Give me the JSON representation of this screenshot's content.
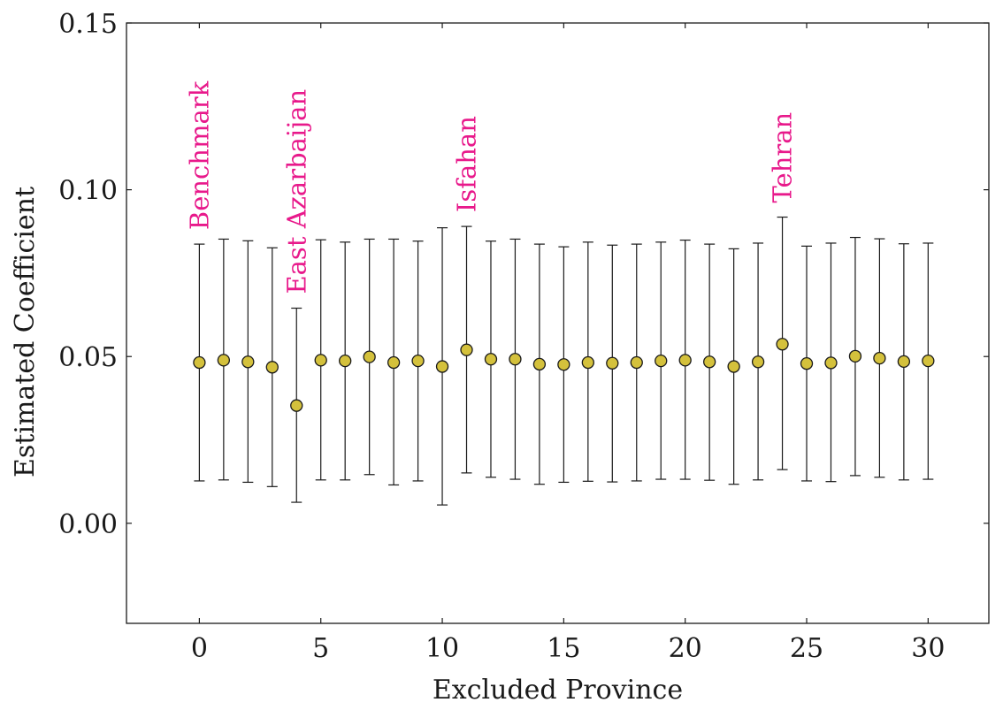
{
  "chart_data": {
    "type": "scatter",
    "title": "",
    "xlabel": "Excluded Province",
    "ylabel": "Estimated Coefficient",
    "xlim": [
      -3,
      32.5
    ],
    "ylim": [
      -0.03,
      0.15
    ],
    "xticks": [
      0,
      5,
      10,
      15,
      20,
      25,
      30
    ],
    "yticks": [
      0.0,
      0.05,
      0.1,
      0.15
    ],
    "ytick_labels": [
      "0.00",
      "0.05",
      "0.10",
      "0.15"
    ],
    "grid": false,
    "colors": {
      "marker_fill": "#d4c13c",
      "marker_stroke": "#1a1a1a",
      "errorbar": "#1a1a1a",
      "annotation": "#e8198b",
      "axis": "#1a1a1a"
    },
    "points": [
      {
        "x": 0,
        "y": 0.0482,
        "lo": 0.0127,
        "hi": 0.0837
      },
      {
        "x": 1,
        "y": 0.0489,
        "lo": 0.013,
        "hi": 0.0852
      },
      {
        "x": 2,
        "y": 0.0484,
        "lo": 0.0123,
        "hi": 0.0847
      },
      {
        "x": 3,
        "y": 0.0468,
        "lo": 0.011,
        "hi": 0.0826
      },
      {
        "x": 4,
        "y": 0.0353,
        "lo": 0.0063,
        "hi": 0.0645
      },
      {
        "x": 5,
        "y": 0.0489,
        "lo": 0.013,
        "hi": 0.085
      },
      {
        "x": 6,
        "y": 0.0487,
        "lo": 0.013,
        "hi": 0.0843
      },
      {
        "x": 7,
        "y": 0.0499,
        "lo": 0.0146,
        "hi": 0.0852
      },
      {
        "x": 8,
        "y": 0.0482,
        "lo": 0.0115,
        "hi": 0.0852
      },
      {
        "x": 9,
        "y": 0.0487,
        "lo": 0.0127,
        "hi": 0.0846
      },
      {
        "x": 10,
        "y": 0.047,
        "lo": 0.0055,
        "hi": 0.0886
      },
      {
        "x": 11,
        "y": 0.052,
        "lo": 0.0151,
        "hi": 0.089
      },
      {
        "x": 12,
        "y": 0.0492,
        "lo": 0.0138,
        "hi": 0.0846
      },
      {
        "x": 13,
        "y": 0.0492,
        "lo": 0.0132,
        "hi": 0.0852
      },
      {
        "x": 14,
        "y": 0.0477,
        "lo": 0.0117,
        "hi": 0.0837
      },
      {
        "x": 15,
        "y": 0.0476,
        "lo": 0.0123,
        "hi": 0.0829
      },
      {
        "x": 16,
        "y": 0.0482,
        "lo": 0.0126,
        "hi": 0.0843
      },
      {
        "x": 17,
        "y": 0.048,
        "lo": 0.0124,
        "hi": 0.0834
      },
      {
        "x": 18,
        "y": 0.0482,
        "lo": 0.0127,
        "hi": 0.0837
      },
      {
        "x": 19,
        "y": 0.0487,
        "lo": 0.0132,
        "hi": 0.0843
      },
      {
        "x": 20,
        "y": 0.0489,
        "lo": 0.0132,
        "hi": 0.0849
      },
      {
        "x": 21,
        "y": 0.0484,
        "lo": 0.0129,
        "hi": 0.0837
      },
      {
        "x": 22,
        "y": 0.047,
        "lo": 0.0117,
        "hi": 0.0823
      },
      {
        "x": 23,
        "y": 0.0484,
        "lo": 0.013,
        "hi": 0.084
      },
      {
        "x": 24,
        "y": 0.0537,
        "lo": 0.0161,
        "hi": 0.0918
      },
      {
        "x": 25,
        "y": 0.0479,
        "lo": 0.0127,
        "hi": 0.0831
      },
      {
        "x": 26,
        "y": 0.0481,
        "lo": 0.0125,
        "hi": 0.084
      },
      {
        "x": 27,
        "y": 0.0501,
        "lo": 0.0143,
        "hi": 0.0857
      },
      {
        "x": 28,
        "y": 0.0495,
        "lo": 0.0138,
        "hi": 0.0853
      },
      {
        "x": 29,
        "y": 0.0485,
        "lo": 0.013,
        "hi": 0.0838
      },
      {
        "x": 30,
        "y": 0.0487,
        "lo": 0.0132,
        "hi": 0.084
      }
    ],
    "annotations": [
      {
        "text": "Benchmark",
        "x": 0
      },
      {
        "text": "East Azarbaijan",
        "x": 4
      },
      {
        "text": "Isfahan",
        "x": 11
      },
      {
        "text": "Tehran",
        "x": 24
      }
    ]
  }
}
